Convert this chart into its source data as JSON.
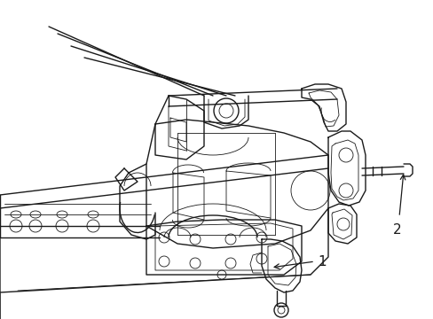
{
  "background_color": "#ffffff",
  "line_color": "#1a1a1a",
  "figsize": [
    4.89,
    3.6
  ],
  "dpi": 100,
  "label_1": "1",
  "label_2": "2"
}
